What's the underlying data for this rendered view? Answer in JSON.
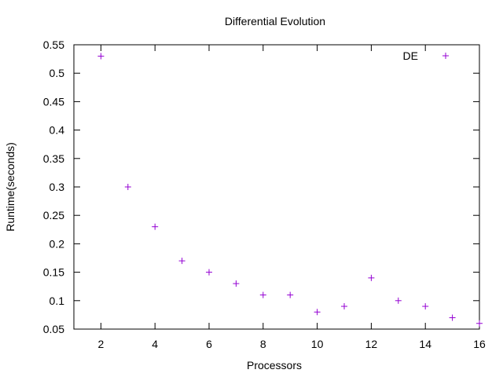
{
  "chart_data": {
    "type": "scatter",
    "title": "Differential Evolution",
    "xlabel": "Processors",
    "ylabel": "Runtime(seconds)",
    "xlim": [
      1,
      16
    ],
    "ylim": [
      0.05,
      0.55
    ],
    "xticks": [
      2,
      4,
      6,
      8,
      10,
      12,
      14,
      16
    ],
    "yticks": [
      0.05,
      0.1,
      0.15,
      0.2,
      0.25,
      0.3,
      0.35,
      0.4,
      0.45,
      0.5,
      0.55
    ],
    "ytick_labels": [
      "0.05",
      "0.1",
      "0.15",
      "0.2",
      "0.25",
      "0.3",
      "0.35",
      "0.4",
      "0.45",
      "0.5",
      "0.55"
    ],
    "grid": false,
    "legend_position": "top-right",
    "series": [
      {
        "name": "DE",
        "color": "#9400d3",
        "marker": "plus",
        "x": [
          2,
          3,
          4,
          5,
          6,
          7,
          8,
          9,
          10,
          11,
          12,
          13,
          14,
          15,
          16
        ],
        "y": [
          0.53,
          0.3,
          0.23,
          0.17,
          0.15,
          0.13,
          0.11,
          0.11,
          0.08,
          0.09,
          0.14,
          0.1,
          0.09,
          0.07,
          0.06
        ]
      }
    ]
  }
}
